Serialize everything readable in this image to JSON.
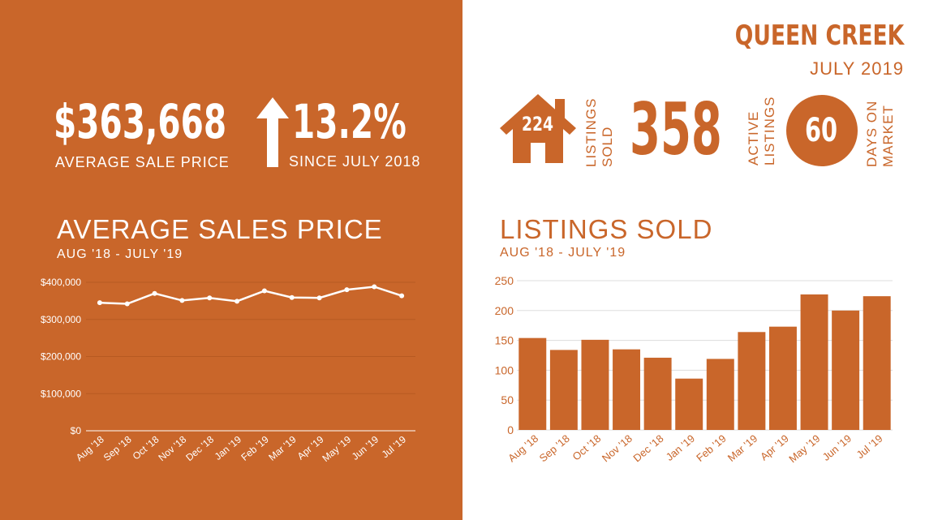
{
  "colors": {
    "accent": "#c9662a",
    "white": "#ffffff",
    "grid_on_orange": "#b75a22",
    "grid_on_white": "#dddddd"
  },
  "header": {
    "city": "QUEEN CREEK",
    "period": "JULY 2019"
  },
  "kpi": {
    "average_price": "$363,668",
    "average_price_label": "AVERAGE  SALE PRICE",
    "change": "13.2%",
    "change_label": "SINCE JULY 2018",
    "change_icon": "arrow-up-icon",
    "listings_sold": "224",
    "listings_sold_label_1": "LISTINGS",
    "listings_sold_label_2": "SOLD",
    "listings_icon": "house-icon",
    "active_listings": "358",
    "active_label_1": "ACTIVE",
    "active_label_2": "LISTINGS",
    "days_on_market": "60",
    "dom_label_1": "DAYS ON",
    "dom_label_2": "MARKET"
  },
  "chart_data": [
    {
      "type": "line",
      "title": "AVERAGE SALES PRICE",
      "subtitle": "AUG '18 - JULY '19",
      "categories": [
        "Aug '18",
        "Sep '18",
        "Oct '18",
        "Nov '18",
        "Dec '18",
        "Jan '19",
        "Feb '19",
        "Mar '19",
        "Apr '19",
        "May '19",
        "Jun '19",
        "Jul '19"
      ],
      "values": [
        345000,
        342000,
        370000,
        351000,
        358000,
        349000,
        377000,
        359000,
        358000,
        380000,
        388000,
        363668
      ],
      "ylim": [
        0,
        400000
      ],
      "yticks": [
        0,
        100000,
        200000,
        300000,
        400000
      ],
      "ytick_labels": [
        "$0",
        "$100,000",
        "$200,000",
        "$300,000",
        "$400,000"
      ],
      "grid": true
    },
    {
      "type": "bar",
      "title": "LISTINGS SOLD",
      "subtitle": "AUG '18 - JULY '19",
      "categories": [
        "Aug '18",
        "Sep '18",
        "Oct '18",
        "Nov '18",
        "Dec '18",
        "Jan '19",
        "Feb '19",
        "Mar '19",
        "Apr '19",
        "May '19",
        "Jun '19",
        "Jul '19"
      ],
      "values": [
        154,
        134,
        151,
        135,
        121,
        86,
        119,
        164,
        173,
        227,
        200,
        224
      ],
      "ylim": [
        0,
        250
      ],
      "yticks": [
        0,
        50,
        100,
        150,
        200,
        250
      ],
      "ytick_labels": [
        "0",
        "50",
        "100",
        "150",
        "200",
        "250"
      ],
      "grid": true
    }
  ]
}
